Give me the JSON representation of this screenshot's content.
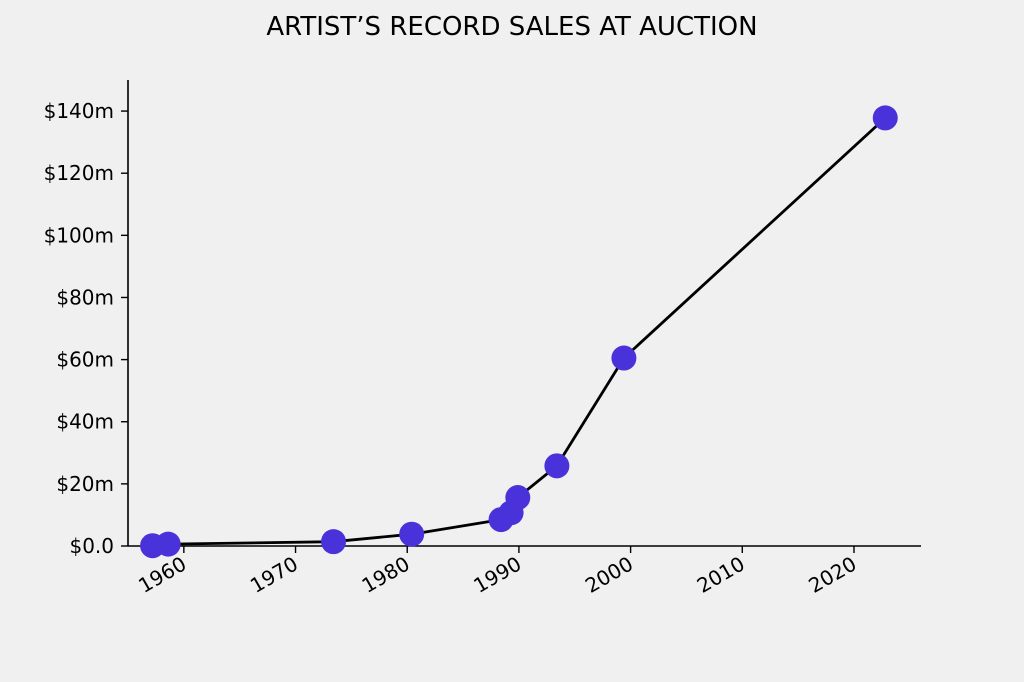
{
  "chart_data": {
    "type": "line",
    "title": "ARTIST’S RECORD SALES AT AUCTION",
    "xlabel": "",
    "ylabel": "",
    "xlim": [
      1955,
      2026
    ],
    "ylim": [
      0,
      150
    ],
    "x_ticks": [
      {
        "value": 1960,
        "label": "1960"
      },
      {
        "value": 1970,
        "label": "1970"
      },
      {
        "value": 1980,
        "label": "1980"
      },
      {
        "value": 1990,
        "label": "1990"
      },
      {
        "value": 2000,
        "label": "2000"
      },
      {
        "value": 2010,
        "label": "2010"
      },
      {
        "value": 2020,
        "label": "2020"
      }
    ],
    "y_ticks": [
      {
        "value": 0,
        "label": "$0.0"
      },
      {
        "value": 20,
        "label": "$20m"
      },
      {
        "value": 40,
        "label": "$40m"
      },
      {
        "value": 60,
        "label": "$60m"
      },
      {
        "value": 80,
        "label": "$80m"
      },
      {
        "value": 100,
        "label": "$100m"
      },
      {
        "value": 120,
        "label": "$120m"
      },
      {
        "value": 140,
        "label": "$140m"
      }
    ],
    "series": [
      {
        "x": [
          1957.2,
          1958.6,
          1973.4,
          1980.4,
          1988.4,
          1989.3,
          1989.9,
          1993.4,
          1999.4,
          2022.8
        ],
        "y": [
          0.1,
          0.6,
          1.4,
          3.8,
          8.5,
          10.7,
          15.6,
          25.8,
          60.5,
          137.8
        ],
        "line_color": "#000000",
        "marker_color": "#4a32db"
      }
    ],
    "grid": false,
    "legend": "none"
  }
}
